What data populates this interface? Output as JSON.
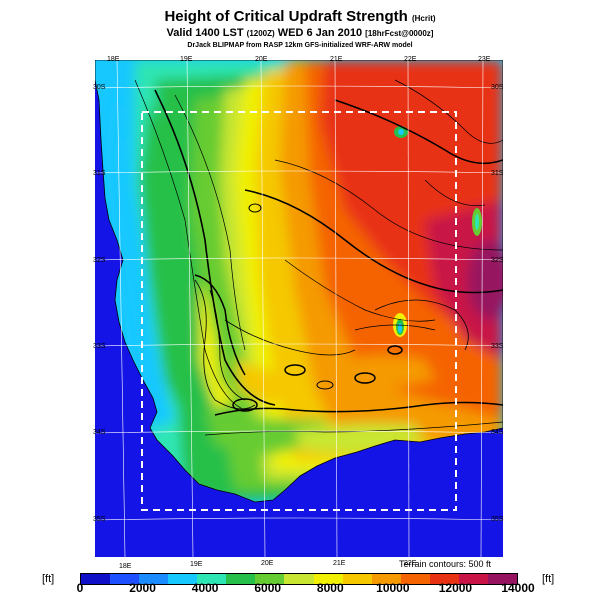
{
  "header": {
    "title": "Height of Critical Updraft Strength",
    "title_units": "(Hcrit)",
    "subtitle": "Valid 1400 LST",
    "subtitle_time": "(1200Z)",
    "subtitle_date": "WED 6 Jan 2010",
    "subtitle_forecast": "[18hrFcst@0000z]",
    "credit": "DrJack BLIPMAP from RASP 12km GFS-initialized WRF-ARW model"
  },
  "map": {
    "lon_labels_top": [
      "18E",
      "19E",
      "20E",
      "21E",
      "22E",
      "23E"
    ],
    "lon_labels_bottom": [
      "18E",
      "19E",
      "20E",
      "21E",
      "22E"
    ],
    "lat_labels_left": [
      "30S",
      "31S",
      "32S",
      "33S",
      "34S",
      "35S"
    ],
    "lat_labels_right": [
      "30S",
      "31S",
      "32S",
      "33S",
      "34S",
      "35S"
    ],
    "terrain_note": "Terrain contours: 500 ft",
    "ocean_color": "#1414e6"
  },
  "colorbar": {
    "unit_left": "[ft]",
    "unit_right": "[ft]",
    "tick_labels": [
      "0",
      "2000",
      "4000",
      "6000",
      "8000",
      "10000",
      "12000",
      "14000"
    ],
    "colors": [
      "#1010c8",
      "#1e50ff",
      "#1a8cff",
      "#17c8ff",
      "#2ee6b4",
      "#26c04a",
      "#66cc33",
      "#c8e632",
      "#f0f000",
      "#f5c800",
      "#f59a00",
      "#f56400",
      "#e83214",
      "#c81446",
      "#961460"
    ]
  }
}
